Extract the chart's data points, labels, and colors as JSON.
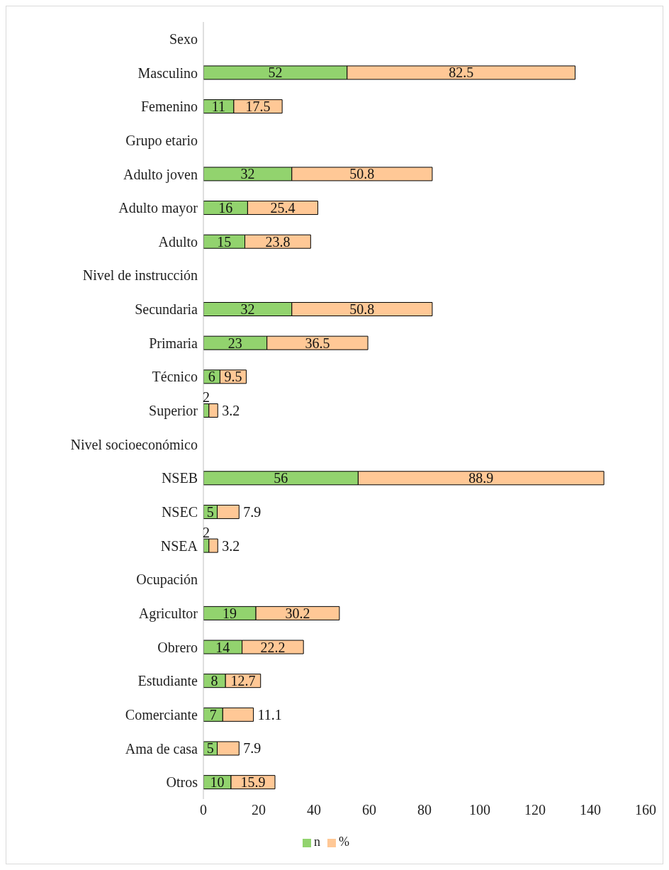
{
  "chart_data": {
    "type": "bar",
    "orientation": "horizontal",
    "stacked": true,
    "data_labels": true,
    "legend": "bottom",
    "grid": false,
    "categories": [
      "Sexo",
      "Masculino",
      "Femenino",
      "Grupo etario",
      "Adulto joven",
      "Adulto mayor",
      "Adulto",
      "Nivel de instrucción",
      "Secundaria",
      "Primaria",
      "Técnico",
      "Superior",
      "Nivel socioeconómico",
      "NSEB",
      "NSEC",
      "NSEA",
      "Ocupación",
      "Agricultor",
      "Obrero",
      "Estudiante",
      "Comerciante",
      "Ama de casa",
      "Otros"
    ],
    "series": [
      {
        "name": "n",
        "color": "#92d36e",
        "values": [
          null,
          52,
          11,
          null,
          32,
          16,
          15,
          null,
          32,
          23,
          6,
          2,
          null,
          56,
          5,
          2,
          null,
          19,
          14,
          8,
          7,
          5,
          10
        ]
      },
      {
        "name": "%",
        "color": "#ffc896",
        "values": [
          null,
          82.5,
          17.5,
          null,
          50.8,
          25.4,
          23.8,
          null,
          50.8,
          36.5,
          9.5,
          3.2,
          null,
          88.9,
          7.9,
          3.2,
          null,
          30.2,
          22.2,
          12.7,
          11.1,
          7.9,
          15.9
        ]
      }
    ],
    "xlim": [
      0,
      160
    ],
    "xticks": [
      0,
      20,
      40,
      60,
      80,
      100,
      120,
      140,
      160
    ]
  }
}
